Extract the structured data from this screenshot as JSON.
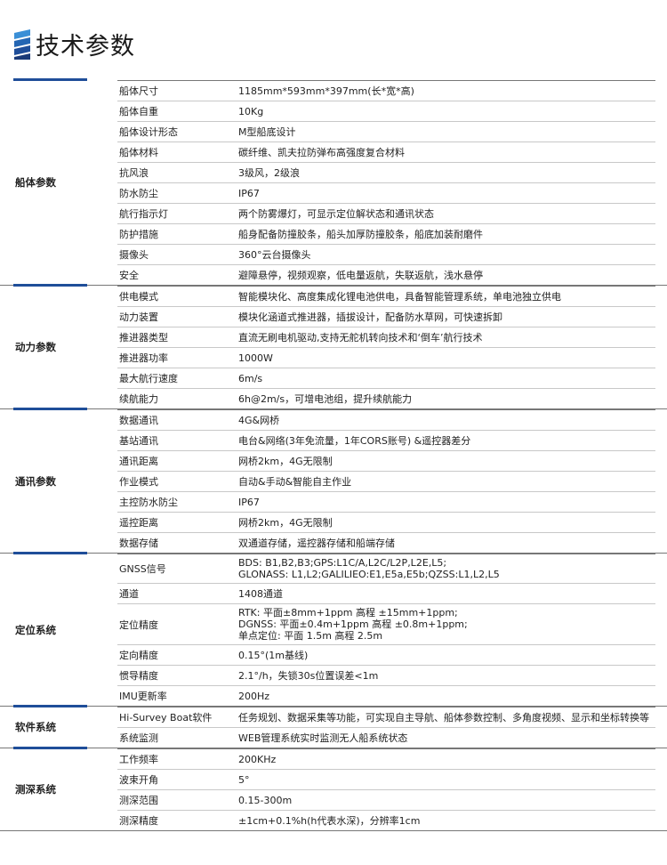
{
  "title": "技术参数",
  "colors": {
    "accent": "#1f4e99"
  },
  "groups": [
    {
      "label": "船体参数",
      "rows": [
        [
          "船体尺寸",
          "1185mm*593mm*397mm(长*宽*高)"
        ],
        [
          "船体自重",
          "10Kg"
        ],
        [
          "船体设计形态",
          "M型船底设计"
        ],
        [
          "船体材料",
          "碳纤维、凯夫拉防弹布高强度复合材料"
        ],
        [
          "抗风浪",
          "3级风，2级浪"
        ],
        [
          "防水防尘",
          "IP67"
        ],
        [
          "航行指示灯",
          "两个防雾爆灯，可显示定位解状态和通讯状态"
        ],
        [
          "防护措施",
          "船身配备防撞胶条，船头加厚防撞胶条，船底加装耐磨件"
        ],
        [
          "摄像头",
          "360°云台摄像头"
        ],
        [
          "安全",
          "避障悬停，视频观察，低电量返航，失联返航，浅水悬停"
        ]
      ]
    },
    {
      "label": "动力参数",
      "rows": [
        [
          "供电模式",
          "智能模块化、高度集成化锂电池供电，具备智能管理系统，单电池独立供电"
        ],
        [
          "动力装置",
          "模块化涵道式推进器，插拔设计，配备防水草网，可快速拆卸"
        ],
        [
          "推进器类型",
          "直流无刷电机驱动,支持无舵机转向技术和‘倒车’航行技术"
        ],
        [
          "推进器功率",
          "1000W"
        ],
        [
          "最大航行速度",
          "6m/s"
        ],
        [
          "续航能力",
          "6h@2m/s，可增电池组，提升续航能力"
        ]
      ]
    },
    {
      "label": "通讯参数",
      "rows": [
        [
          "数据通讯",
          "4G&网桥"
        ],
        [
          "基站通讯",
          "电台&网络(3年免流量，1年CORS账号) &遥控器差分"
        ],
        [
          "通讯距离",
          "网桥2km，4G无限制"
        ],
        [
          "作业模式",
          "自动&手动&智能自主作业"
        ],
        [
          "主控防水防尘",
          "IP67"
        ],
        [
          "遥控距离",
          "网桥2km，4G无限制"
        ],
        [
          "数据存储",
          "双通道存储，遥控器存储和船端存储"
        ]
      ]
    },
    {
      "label": "定位系统",
      "rows": [
        [
          "GNSS信号",
          "BDS: B1,B2,B3;GPS:L1C/A,L2C/L2P,L2E,L5;\nGLONASS: L1,L2;GALILIEO:E1,E5a,E5b;QZSS:L1,L2,L5"
        ],
        [
          "通道",
          "1408通道"
        ],
        [
          "定位精度",
          "RTK: 平面±8mm+1ppm 高程 ±15mm+1ppm;\nDGNSS: 平面±0.4m+1ppm 高程 ±0.8m+1ppm;\n单点定位: 平面 1.5m 高程 2.5m"
        ],
        [
          "定向精度",
          "0.15°(1m基线)"
        ],
        [
          "惯导精度",
          "2.1°/h，失锁30s位置误差<1m"
        ],
        [
          "IMU更新率",
          "200Hz"
        ]
      ]
    },
    {
      "label": "软件系统",
      "rows": [
        [
          "Hi-Survey Boat软件",
          "任务规划、数据采集等功能，可实现自主导航、船体参数控制、多角度视频、显示和坐标转换等"
        ],
        [
          "系统监测",
          "WEB管理系统实时监测无人船系统状态"
        ]
      ]
    },
    {
      "label": "测深系统",
      "rows": [
        [
          "工作频率",
          "200KHz"
        ],
        [
          "波束开角",
          "5°"
        ],
        [
          "测深范围",
          "0.15-300m"
        ],
        [
          "测深精度",
          "±1cm+0.1%h(h代表水深)，分辨率1cm"
        ]
      ]
    }
  ]
}
